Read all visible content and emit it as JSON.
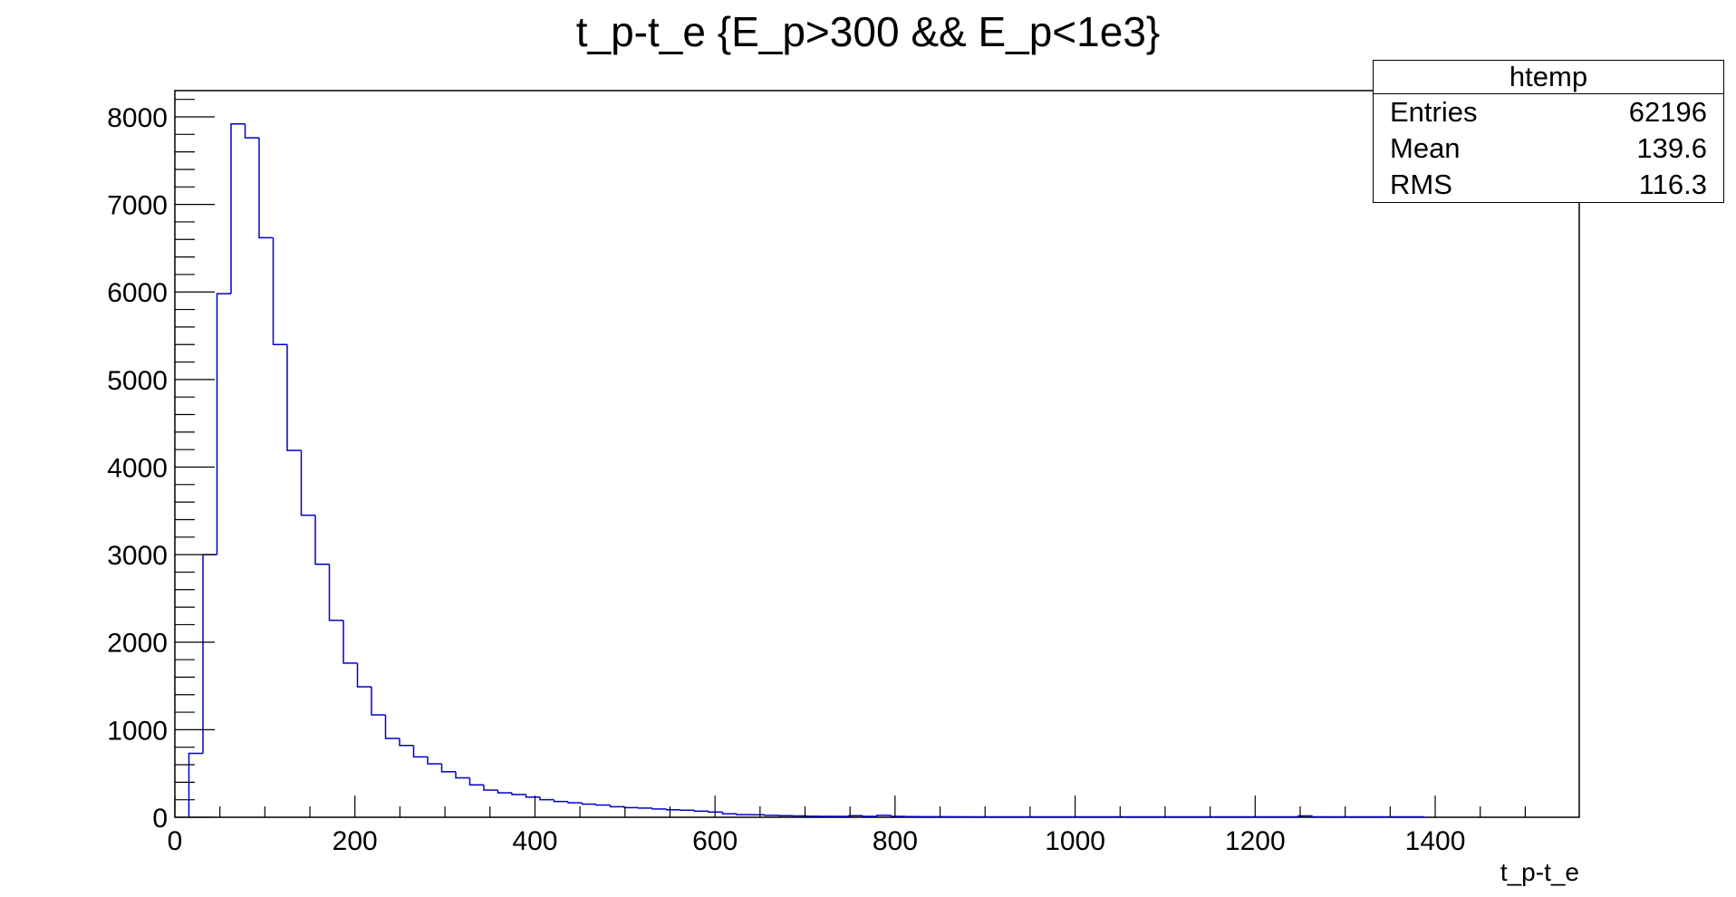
{
  "chart_data": {
    "type": "histogram",
    "title": "t_p-t_e {E_p>300 && E_p<1e3}",
    "xlabel": "t_p-t_e",
    "ylabel": "",
    "xlim": [
      0,
      1560
    ],
    "ylim": [
      0,
      8300
    ],
    "x_ticks": [
      0,
      200,
      400,
      600,
      800,
      1000,
      1200,
      1400
    ],
    "y_ticks": [
      0,
      1000,
      2000,
      3000,
      4000,
      5000,
      6000,
      7000,
      8000
    ],
    "bin_width": 15.6,
    "x_start": 15.6,
    "values": [
      730,
      3000,
      5980,
      7920,
      7760,
      6620,
      5400,
      4190,
      3450,
      2890,
      2250,
      1760,
      1490,
      1170,
      900,
      820,
      690,
      610,
      520,
      450,
      370,
      310,
      280,
      260,
      230,
      200,
      180,
      165,
      150,
      140,
      120,
      110,
      105,
      95,
      85,
      80,
      70,
      60,
      40,
      30,
      28,
      22,
      18,
      15,
      12,
      10,
      10,
      18,
      10,
      22,
      10,
      8,
      7,
      6,
      6,
      5,
      5,
      5,
      5,
      5,
      5,
      5,
      5,
      5,
      5,
      5,
      5,
      5,
      5,
      5,
      5,
      5,
      5,
      5,
      5,
      5,
      5,
      5,
      5,
      15,
      5,
      5,
      5,
      5,
      5,
      5,
      5,
      5
    ],
    "line_color": "#0000cc",
    "grid": false,
    "stats_box": {
      "name": "htemp",
      "rows": [
        {
          "label": "Entries",
          "value": "62196"
        },
        {
          "label": "Mean",
          "value": "139.6"
        },
        {
          "label": "RMS",
          "value": "116.3"
        }
      ]
    }
  }
}
